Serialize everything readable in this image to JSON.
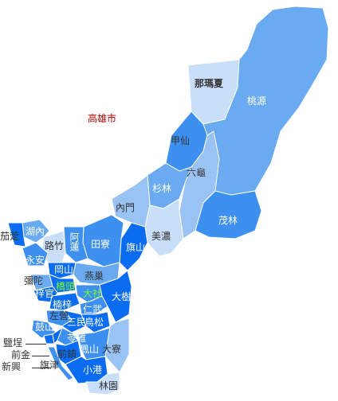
{
  "map": {
    "title": "高雄市",
    "colors": {
      "deep": "#0a6cf0",
      "medium": "#3d8ff0",
      "mid": "#6aaaf0",
      "light": "#99c3f3",
      "pale": "#c9def8",
      "label_light": "#7cff2e"
    },
    "districts": [
      {
        "id": "namaxia",
        "label": "那瑪夏"
      },
      {
        "id": "taoyuan",
        "label": "桃源"
      },
      {
        "id": "jiaxian",
        "label": "甲仙"
      },
      {
        "id": "liugui",
        "label": "六龜"
      },
      {
        "id": "shanlin",
        "label": "杉林"
      },
      {
        "id": "neimen",
        "label": "內門"
      },
      {
        "id": "maolin",
        "label": "茂林"
      },
      {
        "id": "meinong",
        "label": "美濃"
      },
      {
        "id": "qishan",
        "label": "旗山"
      },
      {
        "id": "tianliao",
        "label": "田寮"
      },
      {
        "id": "alian",
        "label": "阿蓮"
      },
      {
        "id": "luzhu",
        "label": "路竹"
      },
      {
        "id": "hunei",
        "label": "湖內"
      },
      {
        "id": "qieding",
        "label": "茄萣"
      },
      {
        "id": "yongan",
        "label": "永安"
      },
      {
        "id": "gangshan",
        "label": "岡山"
      },
      {
        "id": "mituo",
        "label": "彌陀"
      },
      {
        "id": "yanchao",
        "label": "燕巢"
      },
      {
        "id": "qiaotou",
        "label": "橋頭"
      },
      {
        "id": "ziguan",
        "label": "梓官"
      },
      {
        "id": "nanzih",
        "label": "楠梓"
      },
      {
        "id": "dashe",
        "label": "大社"
      },
      {
        "id": "renwu",
        "label": "仁武"
      },
      {
        "id": "dashu",
        "label": "大樹"
      },
      {
        "id": "zuoying",
        "label": "左營"
      },
      {
        "id": "gushan",
        "label": "鼓山"
      },
      {
        "id": "sanmin",
        "label": "三民"
      },
      {
        "id": "niaosong",
        "label": "鳥松"
      },
      {
        "id": "yancheng",
        "label": "鹽埕"
      },
      {
        "id": "xinxing",
        "label": "新興"
      },
      {
        "id": "qianjin",
        "label": "前金"
      },
      {
        "id": "lingya",
        "label": "苓雅"
      },
      {
        "id": "qianzhen",
        "label": "前鎮"
      },
      {
        "id": "qijin",
        "label": "旗津"
      },
      {
        "id": "fengshan",
        "label": "鳳山"
      },
      {
        "id": "daliao",
        "label": "大寮"
      },
      {
        "id": "xiaogang",
        "label": "小港"
      },
      {
        "id": "linyuan",
        "label": "林園"
      }
    ]
  }
}
